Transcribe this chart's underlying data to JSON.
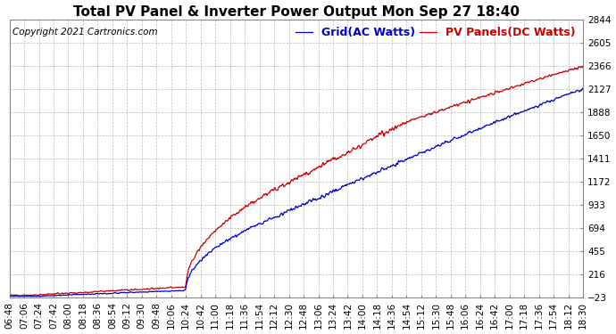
{
  "title": "Total PV Panel & Inverter Power Output Mon Sep 27 18:40",
  "copyright": "Copyright 2021 Cartronics.com",
  "legend_blue": "Grid(AC Watts)",
  "legend_red": "PV Panels(DC Watts)",
  "yticks": [
    2844.2,
    2605.3,
    2366.3,
    2127.4,
    1888.5,
    1649.5,
    1410.6,
    1171.7,
    932.7,
    693.8,
    454.9,
    215.9,
    -23.0
  ],
  "ymin": -23.0,
  "ymax": 2844.2,
  "xtick_labels": [
    "06:48",
    "07:06",
    "07:24",
    "07:42",
    "08:00",
    "08:18",
    "08:36",
    "08:54",
    "09:12",
    "09:30",
    "09:48",
    "10:06",
    "10:24",
    "10:42",
    "11:00",
    "11:18",
    "11:36",
    "11:54",
    "12:12",
    "12:30",
    "12:48",
    "13:06",
    "13:24",
    "13:42",
    "14:00",
    "14:18",
    "14:36",
    "14:54",
    "15:12",
    "15:30",
    "15:48",
    "16:06",
    "16:24",
    "16:42",
    "17:00",
    "17:18",
    "17:36",
    "17:54",
    "18:12",
    "18:30"
  ],
  "color_blue": "#0000cc",
  "color_red": "#cc0000",
  "bg_color": "#ffffff",
  "grid_color": "#aaaaaa",
  "title_fontsize": 11,
  "tick_fontsize": 7.5,
  "legend_fontsize": 9,
  "copyright_fontsize": 7.5
}
